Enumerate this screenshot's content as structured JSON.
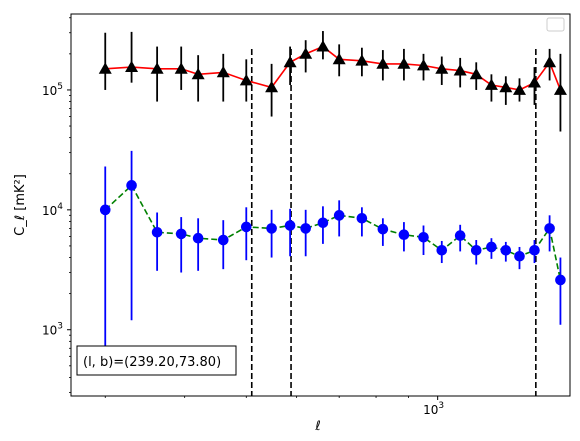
{
  "chart_data": {
    "type": "scatter",
    "title": "",
    "xlabel": "ℓ",
    "ylabel": "C_ℓ [mK²]",
    "xscale": "log",
    "yscale": "log",
    "xlim": [
      265,
      1615
    ],
    "ylim": [
      280,
      430000
    ],
    "x_tick_labels": [
      {
        "value": 1000,
        "base": "10",
        "exp": "3"
      }
    ],
    "y_tick_labels": [
      {
        "value": 1000,
        "base": "10",
        "exp": "3"
      },
      {
        "value": 10000,
        "base": "10",
        "exp": "4"
      },
      {
        "value": 100000,
        "base": "10",
        "exp": "5"
      }
    ],
    "vlines": [
      510,
      588,
      1427
    ],
    "legend": {
      "placement": "top-right",
      "entries": []
    },
    "annotation": "(l, b)=(239.20,73.80)",
    "grid": false,
    "series": [
      {
        "marker": "triangle",
        "marker_color": "#000000",
        "line_color": "#ff0000",
        "line_style": "solid",
        "errorbar_color": "#000000",
        "x": [
          300,
          330,
          362,
          395,
          420,
          460,
          500,
          548,
          586,
          620,
          660,
          700,
          760,
          820,
          885,
          950,
          1015,
          1085,
          1150,
          1215,
          1280,
          1345,
          1420,
          1500,
          1560
        ],
        "y": [
          150000,
          155000,
          150000,
          150000,
          135000,
          140000,
          120000,
          105000,
          170000,
          200000,
          230000,
          180000,
          175000,
          165000,
          165000,
          160000,
          150000,
          145000,
          135000,
          110000,
          105000,
          100000,
          115000,
          170000,
          100000
        ],
        "yerr_low": [
          50000,
          40000,
          70000,
          50000,
          55000,
          60000,
          40000,
          45000,
          60000,
          60000,
          50000,
          50000,
          45000,
          45000,
          45000,
          40000,
          40000,
          40000,
          35000,
          30000,
          30000,
          20000,
          40000,
          50000,
          55000
        ],
        "yerr_high": [
          150000,
          150000,
          80000,
          80000,
          60000,
          60000,
          60000,
          60000,
          60000,
          60000,
          80000,
          60000,
          50000,
          50000,
          55000,
          40000,
          40000,
          40000,
          35000,
          25000,
          25000,
          25000,
          40000,
          50000,
          100000
        ]
      },
      {
        "marker": "circle",
        "marker_color": "#0000ff",
        "line_color": "#008000",
        "line_style": "dashed",
        "errorbar_color": "#0000ff",
        "x": [
          300,
          330,
          362,
          395,
          420,
          460,
          500,
          548,
          586,
          620,
          660,
          700,
          760,
          820,
          885,
          950,
          1015,
          1085,
          1150,
          1215,
          1280,
          1345,
          1420,
          1500,
          1560
        ],
        "y": [
          10000,
          16000,
          6500,
          6300,
          5800,
          5600,
          7200,
          7000,
          7400,
          7000,
          7800,
          9000,
          8500,
          6900,
          6200,
          5900,
          4600,
          6100,
          4600,
          4900,
          4600,
          4100,
          4600,
          7000,
          2600
        ],
        "yerr_low": [
          9500,
          14800,
          3400,
          3300,
          2700,
          2400,
          3400,
          3000,
          3300,
          2900,
          2600,
          3000,
          2500,
          1900,
          1700,
          1700,
          1000,
          1600,
          1100,
          1000,
          900,
          900,
          1000,
          2500,
          1500
        ],
        "yerr_high": [
          13000,
          15000,
          3000,
          2400,
          2700,
          2600,
          3300,
          3000,
          2800,
          3000,
          2900,
          3000,
          2000,
          1600,
          1700,
          1500,
          900,
          1400,
          1000,
          900,
          800,
          800,
          1000,
          2000,
          1400
        ]
      }
    ]
  }
}
